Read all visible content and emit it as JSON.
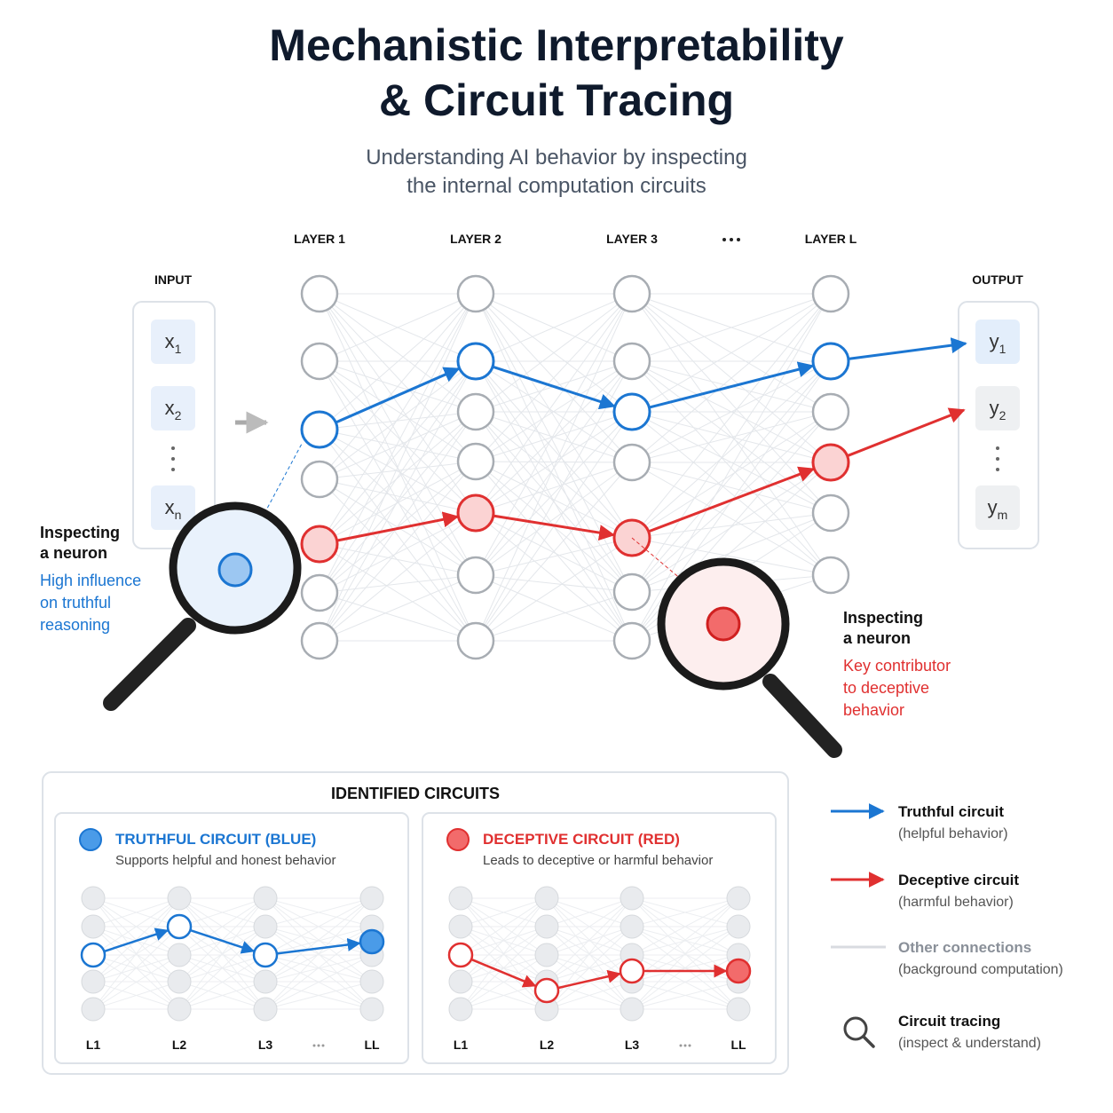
{
  "header": {
    "title_lines": [
      "Mechanistic Interpretability",
      "& Circuit Tracing"
    ],
    "subtitle_lines": [
      "Understanding AI behavior by inspecting",
      "the internal computation circuits"
    ]
  },
  "network": {
    "input_label": "INPUT",
    "output_label": "OUTPUT",
    "layers": [
      "LAYER 1",
      "LAYER 2",
      "LAYER 3",
      "LAYER L"
    ],
    "inputs": [
      {
        "base": "x",
        "sub": "1"
      },
      {
        "base": "x",
        "sub": "2"
      },
      {
        "base": "x",
        "sub": "n"
      }
    ],
    "outputs": [
      {
        "base": "y",
        "sub": "1"
      },
      {
        "base": "y",
        "sub": "2"
      },
      {
        "base": "y",
        "sub": "m"
      }
    ]
  },
  "callouts": [
    {
      "heading_lines": [
        "Inspecting",
        "a neuron"
      ],
      "note_lines": [
        "High influence",
        "on truthful",
        "reasoning"
      ]
    },
    {
      "heading_lines": [
        "Inspecting",
        "a neuron"
      ],
      "note_lines": [
        "Key contributor",
        "to deceptive",
        "behavior"
      ]
    }
  ],
  "circuits": {
    "title": "IDENTIFIED CIRCUITS",
    "cards": [
      {
        "title": "TRUTHFUL CIRCUIT (BLUE)",
        "description": "Supports helpful and honest behavior",
        "layer_labels": [
          "L1",
          "L2",
          "L3",
          "LL"
        ]
      },
      {
        "title": "DECEPTIVE CIRCUIT (RED)",
        "description": "Leads to deceptive or harmful behavior",
        "layer_labels": [
          "L1",
          "L2",
          "L3",
          "LL"
        ]
      }
    ]
  },
  "legend": [
    {
      "label": "Truthful circuit",
      "note": "(helpful behavior)"
    },
    {
      "label": "Deceptive circuit",
      "note": "(harmful behavior)"
    },
    {
      "label": "Other connections",
      "note": "(background computation)"
    },
    {
      "label": "Circuit tracing",
      "note": "(inspect & understand)"
    }
  ]
}
